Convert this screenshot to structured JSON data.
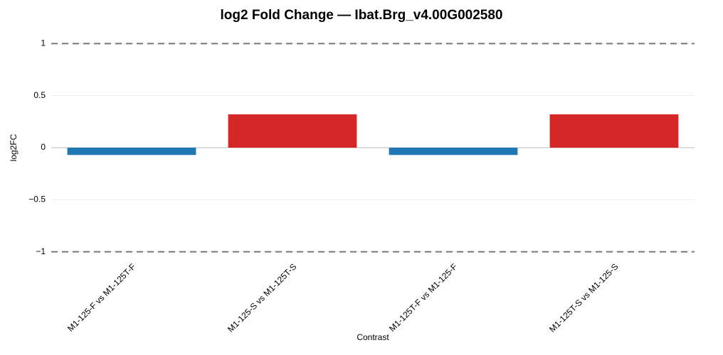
{
  "chart_data": {
    "type": "bar",
    "title": "log2 Fold Change — Ibat.Brg_v4.00G002580",
    "x_label": "Contrast",
    "y_label": "log2FC",
    "categories": [
      "M1-125-F vs M1-125T-F",
      "M1-125-S vs M1-125T-S",
      "M1-125T-F vs M1-125-F",
      "M1-125T-S vs M1-125-S"
    ],
    "values": [
      -0.07,
      0.32,
      -0.07,
      0.32
    ],
    "colors": [
      "#1f77b4",
      "#d62728",
      "#1f77b4",
      "#d62728"
    ],
    "ylim": [
      -1.05,
      1.05
    ],
    "yticks": [
      {
        "value": -1,
        "label": "−1"
      },
      {
        "value": -0.5,
        "label": "−0.5"
      },
      0,
      0.5,
      1
    ],
    "threshold_lines": [
      -1,
      1
    ],
    "grid": true
  }
}
